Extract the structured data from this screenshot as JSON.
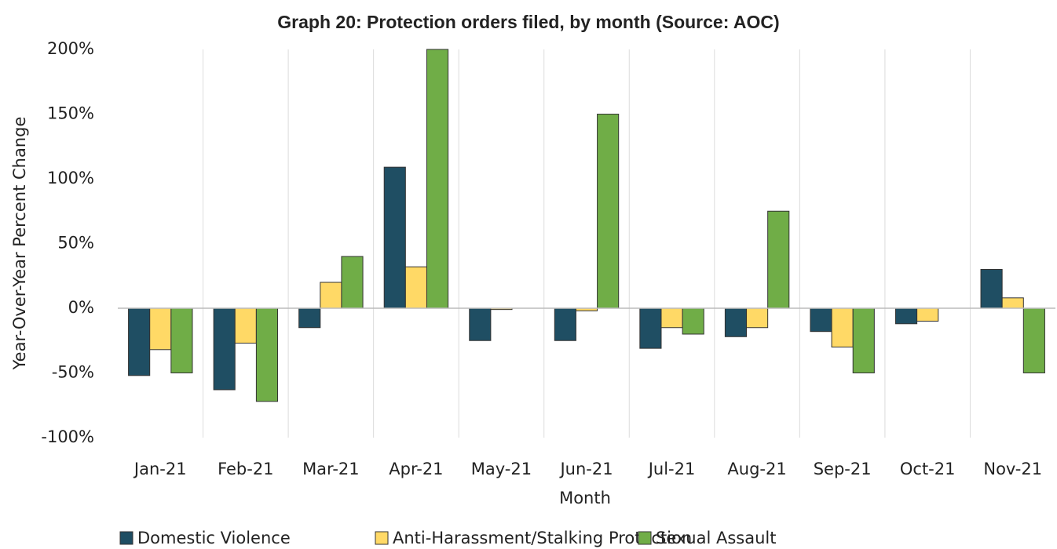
{
  "chart_data": {
    "type": "bar",
    "title": "Graph 20: Protection orders filed, by month (Source: AOC)",
    "x_label": "Month",
    "y_label": "Year-Over-Year Percent Change",
    "categories": [
      "Jan-21",
      "Feb-21",
      "Mar-21",
      "Apr-21",
      "May-21",
      "Jun-21",
      "Jul-21",
      "Aug-21",
      "Sep-21",
      "Oct-21",
      "Nov-21"
    ],
    "series": [
      {
        "name": "Domestic Violence",
        "color": "#1f4e63",
        "values": [
          -52,
          -63,
          -15,
          109,
          -25,
          -25,
          -31,
          -22,
          -18,
          -12,
          30
        ]
      },
      {
        "name": "Anti-Harassment/Stalking Protection",
        "color": "#ffd966",
        "values": [
          -32,
          -27,
          20,
          32,
          -1,
          -2,
          -15,
          -15,
          -30,
          -10,
          8
        ]
      },
      {
        "name": "Sexual Assault",
        "color": "#70ad47",
        "values": [
          -50,
          -72,
          40,
          200,
          0,
          150,
          -20,
          75,
          -50,
          0,
          -50
        ]
      }
    ],
    "ylim": [
      -100,
      200
    ],
    "yticks": [
      {
        "value": -100,
        "label": "-100%"
      },
      {
        "value": -50,
        "label": "-50%"
      },
      {
        "value": 0,
        "label": "0%"
      },
      {
        "value": 50,
        "label": "50%"
      },
      {
        "value": 100,
        "label": "100%"
      },
      {
        "value": 150,
        "label": "150%"
      },
      {
        "value": 200,
        "label": "200%"
      }
    ],
    "grid": true,
    "legend": "bottom"
  }
}
